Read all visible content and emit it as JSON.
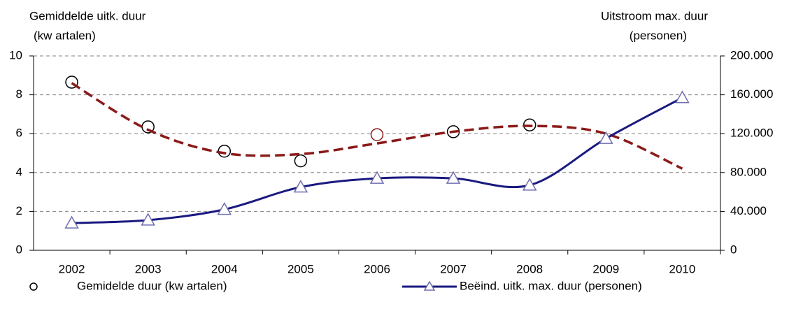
{
  "chart_data": {
    "type": "line",
    "ylabel": [
      "Gemiddelde uitk. duur",
      "(kw artalen)"
    ],
    "y2label": [
      "Uitstroom max. duur",
      "(personen)"
    ],
    "categories": [
      "2002",
      "2003",
      "2004",
      "2005",
      "2006",
      "2007",
      "2008",
      "2009",
      "2010"
    ],
    "ylim": [
      0,
      10
    ],
    "yticks": [
      0,
      2,
      4,
      6,
      8,
      10
    ],
    "y2lim": [
      0,
      200000
    ],
    "y2ticks": [
      0,
      {
        "value": 40000,
        "label": "40.000"
      },
      {
        "value": 80000,
        "label": "80.000"
      },
      {
        "value": 120000,
        "label": "120.000"
      },
      {
        "value": 160000,
        "label": "160.000"
      },
      {
        "value": 200000,
        "label": "200.000"
      }
    ],
    "grid": true,
    "series": [
      {
        "name": "Gemidelde duur (kw artalen)",
        "marker": "circle",
        "line": false,
        "color": "#000000",
        "colors": [
          "#000000",
          "#000000",
          "#000000",
          "#000000",
          "#8b1a1a",
          "#000000",
          "#000000",
          null,
          null
        ],
        "values": [
          8.65,
          6.35,
          5.1,
          4.6,
          5.95,
          6.1,
          6.45,
          null,
          null
        ]
      },
      {
        "marker": "none",
        "line": "dashed",
        "color": "#8b1a1a",
        "values": [
          8.6,
          6.2,
          5.0,
          4.95,
          5.5,
          6.1,
          6.4,
          6.0,
          4.2
        ]
      },
      {
        "name": "Beëind. uitk. max. duur (personen)",
        "marker": "triangle",
        "line": "solid",
        "color": "#1a1a80",
        "axis": "y2",
        "values": [
          28000,
          31000,
          42000,
          65000,
          74000,
          74000,
          67000,
          115000,
          157000
        ]
      }
    ]
  }
}
